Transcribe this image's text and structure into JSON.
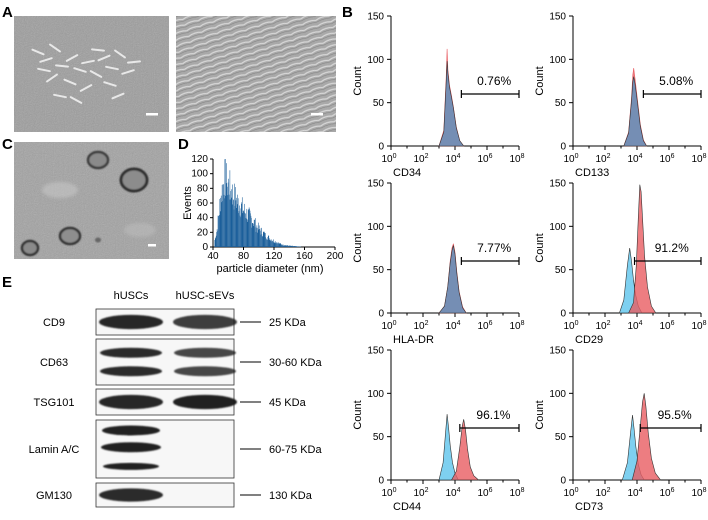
{
  "panel_letters": {
    "a": "A",
    "b": "B",
    "c": "C",
    "d": "D",
    "e": "E"
  },
  "colors": {
    "unstained": "#5ec4ec",
    "stained": "#e85c62",
    "overlap": "#6f8fb6",
    "nta_bar": "#1a5e9a",
    "band": "#151515"
  },
  "chart_data": [
    {
      "type": "area",
      "marker": "CD34",
      "positive_percent": "0.76%",
      "ylabel": "Count",
      "ylim": [
        0,
        150
      ],
      "yticks": [
        "0",
        "50",
        "100",
        "150"
      ],
      "xticks": [
        "10",
        "10",
        "10",
        "10",
        "10"
      ],
      "xtick_exponents": [
        "0",
        "2",
        "4",
        "6",
        "8"
      ],
      "x_scale": "log",
      "xlim": [
        1,
        100000000
      ],
      "series": [
        {
          "x": [
            1000,
            2000,
            2800,
            3200,
            3600,
            4500,
            6000,
            8000,
            12000,
            20000,
            35000
          ],
          "y": [
            0,
            18,
            80,
            112,
            88,
            70,
            58,
            45,
            22,
            6,
            0
          ]
        },
        {
          "x": [
            1000,
            2000,
            2800,
            3200,
            3600,
            4500,
            6000,
            8000,
            12000,
            20000,
            35000
          ],
          "y": [
            0,
            16,
            74,
            98,
            84,
            68,
            56,
            44,
            21,
            6,
            0
          ]
        }
      ],
      "gate": [
        25000,
        100000000
      ]
    },
    {
      "type": "area",
      "marker": "CD133",
      "positive_percent": "5.08%",
      "ylabel": "Count",
      "ylim": [
        0,
        150
      ],
      "yticks": [
        "0",
        "50",
        "100",
        "150"
      ],
      "xticks": [
        "10",
        "10",
        "10",
        "10",
        "10"
      ],
      "xtick_exponents": [
        "0",
        "2",
        "4",
        "6",
        "8"
      ],
      "x_scale": "log",
      "xlim": [
        1,
        100000000
      ],
      "series": [
        {
          "x": [
            1500,
            3000,
            4500,
            5500,
            6200,
            7500,
            9500,
            12000,
            16000,
            25000,
            40000
          ],
          "y": [
            0,
            16,
            55,
            82,
            90,
            78,
            62,
            45,
            25,
            7,
            0
          ]
        },
        {
          "x": [
            1500,
            3000,
            4500,
            5500,
            6200,
            7500,
            9500,
            12000,
            16000,
            25000,
            40000
          ],
          "y": [
            0,
            15,
            52,
            74,
            80,
            72,
            58,
            42,
            23,
            6,
            0
          ]
        }
      ],
      "gate": [
        25000,
        100000000
      ]
    },
    {
      "type": "area",
      "marker": "HLA-DR",
      "positive_percent": "7.77%",
      "ylabel": "Count",
      "ylim": [
        0,
        150
      ],
      "yticks": [
        "0",
        "50",
        "100",
        "150"
      ],
      "xticks": [
        "10",
        "10",
        "10",
        "10",
        "10"
      ],
      "xtick_exponents": [
        "0",
        "2",
        "4",
        "6",
        "8"
      ],
      "x_scale": "log",
      "xlim": [
        1,
        100000000
      ],
      "series": [
        {
          "x": [
            1000,
            2200,
            3500,
            5000,
            6500,
            8000,
            10000,
            13000,
            18000,
            30000,
            50000
          ],
          "y": [
            0,
            8,
            30,
            60,
            75,
            80,
            70,
            48,
            25,
            7,
            0
          ]
        },
        {
          "x": [
            1000,
            2200,
            3500,
            5000,
            6500,
            8000,
            10000,
            13000,
            18000,
            30000,
            50000
          ],
          "y": [
            0,
            8,
            30,
            58,
            72,
            78,
            68,
            46,
            24,
            6,
            0
          ]
        }
      ],
      "gate": [
        25000,
        100000000
      ]
    },
    {
      "type": "area",
      "marker": "CD29",
      "positive_percent": "91.2%",
      "ylabel": "Count",
      "ylim": [
        0,
        150
      ],
      "yticks": [
        "0",
        "50",
        "100",
        "150"
      ],
      "xticks": [
        "10",
        "10",
        "10",
        "10",
        "10"
      ],
      "xtick_exponents": [
        "0",
        "2",
        "4",
        "6",
        "8"
      ],
      "x_scale": "log",
      "xlim": [
        1,
        100000000
      ],
      "series": [
        {
          "x": [
            800,
            1500,
            2500,
            3500,
            4500,
            6000,
            8000,
            12000,
            20000
          ],
          "y": [
            0,
            15,
            55,
            75,
            60,
            38,
            22,
            8,
            0
          ]
        },
        {
          "x": [
            3000,
            6000,
            9000,
            12000,
            15000,
            18000,
            22000,
            30000,
            45000,
            80000,
            150000
          ],
          "y": [
            0,
            12,
            55,
            110,
            148,
            140,
            110,
            65,
            30,
            8,
            0
          ]
        }
      ],
      "gate": [
        7000,
        100000000
      ]
    },
    {
      "type": "area",
      "marker": "CD44",
      "positive_percent": "96.1%",
      "ylabel": "Count",
      "ylim": [
        0,
        150
      ],
      "yticks": [
        "0",
        "50",
        "100",
        "150"
      ],
      "xticks": [
        "10",
        "10",
        "10",
        "10",
        "10"
      ],
      "xtick_exponents": [
        "0",
        "2",
        "4",
        "6",
        "8"
      ],
      "x_scale": "log",
      "xlim": [
        1,
        100000000
      ],
      "series": [
        {
          "x": [
            1000,
            1800,
            2600,
            3200,
            4000,
            5000,
            7000,
            10000,
            16000
          ],
          "y": [
            0,
            20,
            55,
            76,
            60,
            40,
            20,
            8,
            0
          ]
        },
        {
          "x": [
            6000,
            12000,
            20000,
            28000,
            35000,
            45000,
            60000,
            90000,
            150000,
            300000
          ],
          "y": [
            0,
            10,
            38,
            62,
            70,
            58,
            36,
            15,
            5,
            0
          ]
        }
      ],
      "gate": [
        20000,
        100000000
      ]
    },
    {
      "type": "area",
      "marker": "CD73",
      "positive_percent": "95.5%",
      "ylabel": "Count",
      "ylim": [
        0,
        150
      ],
      "yticks": [
        "0",
        "50",
        "100",
        "150"
      ],
      "xticks": [
        "10",
        "10",
        "10",
        "10",
        "10"
      ],
      "xtick_exponents": [
        "0",
        "2",
        "4",
        "6",
        "8"
      ],
      "x_scale": "log",
      "xlim": [
        1,
        100000000
      ],
      "series": [
        {
          "x": [
            1200,
            2500,
            4000,
            5200,
            6500,
            8500,
            12000,
            18000,
            28000
          ],
          "y": [
            0,
            20,
            55,
            75,
            60,
            38,
            18,
            6,
            0
          ]
        },
        {
          "x": [
            5000,
            10000,
            16000,
            22000,
            28000,
            36000,
            50000,
            80000,
            140000,
            300000
          ],
          "y": [
            0,
            22,
            62,
            90,
            100,
            85,
            55,
            25,
            8,
            0
          ]
        }
      ],
      "gate": [
        16000,
        100000000
      ]
    },
    {
      "type": "bar",
      "title": "",
      "xlabel": "particle diameter (nm)",
      "ylabel": "Events",
      "xlim": [
        40,
        200
      ],
      "ylim": [
        0,
        120
      ],
      "xticks": [
        "40",
        "80",
        "120",
        "160",
        "200"
      ],
      "yticks": [
        "0",
        "20",
        "40",
        "60",
        "80",
        "100",
        "120"
      ],
      "profile": {
        "x": [
          40,
          45,
          50,
          55,
          60,
          65,
          70,
          75,
          80,
          90,
          100,
          110,
          120,
          130,
          140,
          150,
          160,
          180,
          200
        ],
        "y": [
          0,
          30,
          85,
          118,
          105,
          92,
          80,
          72,
          62,
          48,
          30,
          18,
          10,
          4,
          2,
          1,
          0,
          0,
          0
        ]
      }
    }
  ],
  "western_blot": {
    "columns": [
      "hUSCs",
      "hUSC-sEVs"
    ],
    "rows": [
      {
        "protein": "CD9",
        "size": "25 KDa",
        "type": "single",
        "bands": [
          0.92,
          0.82
        ]
      },
      {
        "protein": "CD63",
        "size": "30-60 KDa",
        "type": "double",
        "bands": [
          0.9,
          0.78
        ]
      },
      {
        "protein": "TSG101",
        "size": "45 KDa",
        "type": "single",
        "bands": [
          0.92,
          0.95
        ]
      },
      {
        "protein": "Lamin A/C",
        "size": "60-75 KDa",
        "type": "triple",
        "bands": [
          0.95,
          0
        ]
      },
      {
        "protein": "GM130",
        "size": "130 KDa",
        "type": "single",
        "bands": [
          0.9,
          0
        ]
      }
    ]
  }
}
